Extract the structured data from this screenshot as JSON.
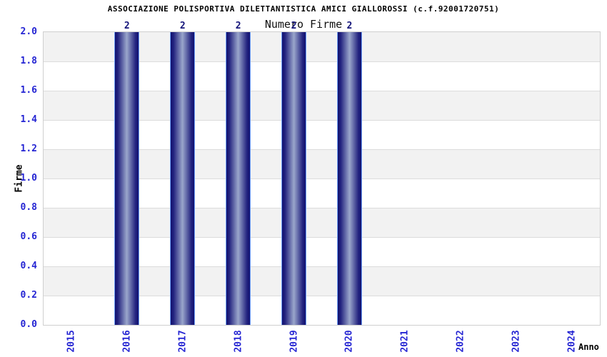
{
  "chart_data": {
    "type": "bar",
    "title": "ASSOCIAZIONE POLISPORTIVA DILETTANTISTICA AMICI GIALLOROSSI (c.f.92001720751)",
    "subtitle": "Numero Firme",
    "xlabel": "Anno",
    "ylabel": "Firme",
    "categories": [
      "2015",
      "2016",
      "2017",
      "2018",
      "2019",
      "2020",
      "2021",
      "2022",
      "2023",
      "2024"
    ],
    "values": [
      0,
      2,
      2,
      2,
      2,
      2,
      0,
      0,
      0,
      0
    ],
    "bar_value_labels": [
      "",
      "2",
      "2",
      "2",
      "2",
      "2",
      "",
      "",
      "",
      ""
    ],
    "ylim": [
      0,
      2
    ],
    "ytick_step": 0.2,
    "ytick_labels": [
      "0.0",
      "0.2",
      "0.4",
      "0.6",
      "0.8",
      "1.0",
      "1.2",
      "1.4",
      "1.6",
      "1.8",
      "2.0"
    ],
    "legend": "none",
    "grid": "alternating-horizontal-bands",
    "colors": {
      "band_gray": "#f2f2f2",
      "band_white": "#ffffff",
      "band_separator": "#dcdcdc",
      "plot_border": "#cfcfcf",
      "bar_gradient_dark": "#12126f",
      "bar_gradient_mid": "#22227f",
      "bar_gradient_light": "#9aa6cb",
      "bar_outline": "#6fa0f8",
      "tick_text_blue": "#2525d3",
      "bar_label_navy": "#14147a",
      "axis_title_black": "#000000",
      "background": "#ffffff"
    }
  }
}
